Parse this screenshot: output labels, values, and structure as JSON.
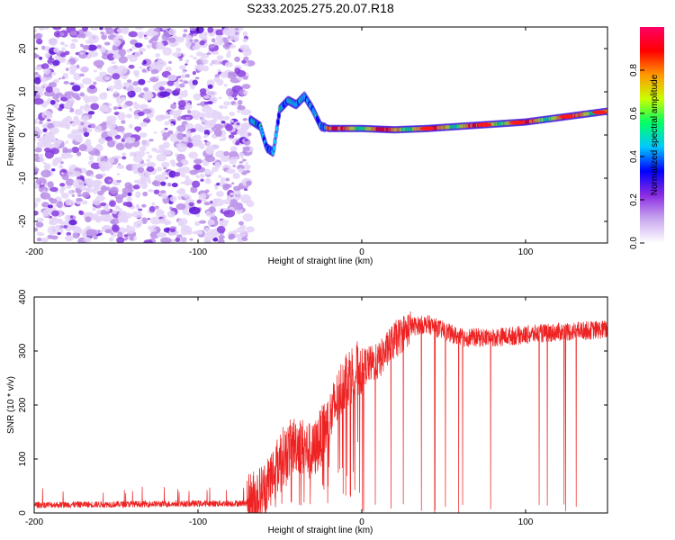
{
  "title": "S233.2025.275.20.07.R18",
  "chart_data": [
    {
      "id": "spectrogram",
      "type": "heatmap",
      "xlabel": "Height of straight line (km)",
      "ylabel": "Frequency (Hz)",
      "xlim": [
        -200,
        150
      ],
      "ylim": [
        -25,
        25
      ],
      "xticks": [
        -200,
        -100,
        0,
        100
      ],
      "yticks": [
        -20,
        -10,
        0,
        10,
        20
      ],
      "xtick_labels": [
        "-200",
        "-100",
        "0",
        "100"
      ],
      "ytick_labels": [
        "-20",
        "-10",
        "0",
        "10",
        "20"
      ],
      "noise_region": {
        "x": [
          -200,
          -68
        ],
        "y": [
          -25,
          25
        ]
      },
      "ridge": {
        "x": [
          -68,
          -62,
          -58,
          -54,
          -50,
          -45,
          -40,
          -35,
          -30,
          -25,
          -20,
          -10,
          0,
          20,
          40,
          60,
          80,
          100,
          120,
          150
        ],
        "freq": [
          3.5,
          2.0,
          -3.0,
          -4.0,
          6.0,
          8.0,
          7.0,
          9.0,
          6.0,
          2.0,
          1.5,
          1.5,
          1.5,
          1.2,
          1.5,
          2.0,
          2.5,
          3.0,
          4.0,
          5.5
        ]
      },
      "colorbar": {
        "label": "Normalized spectral amplitude",
        "ticks": [
          0.0,
          0.2,
          0.4,
          0.6,
          0.8
        ],
        "tick_labels": [
          "0.0",
          "0.2",
          "0.4",
          "0.6",
          "0.8"
        ],
        "range": [
          0,
          1
        ],
        "stops": [
          "#ffffff",
          "#c9a8ef",
          "#8a2be2",
          "#0000ff",
          "#00c8ff",
          "#00ff66",
          "#c8ff00",
          "#ff9900",
          "#ff0000",
          "#ff0066"
        ]
      }
    },
    {
      "id": "snr",
      "type": "line",
      "xlabel": "Height of straight line (km)",
      "ylabel": "SNR (10 * v/v)",
      "xlim": [
        -200,
        150
      ],
      "ylim": [
        0,
        400
      ],
      "xticks": [
        -200,
        -100,
        0,
        100
      ],
      "yticks": [
        0,
        100,
        200,
        300,
        400
      ],
      "xtick_labels": [
        "-200",
        "-100",
        "0",
        "100"
      ],
      "ytick_labels": [
        "0",
        "100",
        "200",
        "300",
        "400"
      ],
      "series": [
        {
          "name": "SNR",
          "color": "#ee2222",
          "envelope_x": [
            -200,
            -70,
            -60,
            -50,
            -40,
            -30,
            -20,
            -10,
            0,
            10,
            20,
            30,
            40,
            60,
            80,
            100,
            120,
            150
          ],
          "envelope_y": [
            15,
            18,
            40,
            100,
            130,
            110,
            170,
            250,
            270,
            280,
            320,
            345,
            350,
            325,
            325,
            330,
            335,
            340
          ]
        }
      ]
    }
  ]
}
